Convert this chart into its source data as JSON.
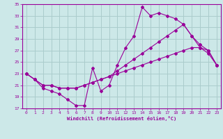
{
  "title": "",
  "xlabel": "Windchill (Refroidissement éolien,°C)",
  "ylabel": "",
  "background_color": "#cce8e8",
  "line_color": "#990099",
  "grid_color": "#aacccc",
  "xlim": [
    -0.5,
    23.5
  ],
  "ylim": [
    17,
    35
  ],
  "xticks": [
    0,
    1,
    2,
    3,
    4,
    5,
    6,
    7,
    8,
    9,
    10,
    11,
    12,
    13,
    14,
    15,
    16,
    17,
    18,
    19,
    20,
    21,
    22,
    23
  ],
  "yticks": [
    17,
    19,
    21,
    23,
    25,
    27,
    29,
    31,
    33,
    35
  ],
  "series": [
    {
      "x": [
        0,
        1,
        2,
        3,
        4,
        5,
        6,
        7,
        8,
        9,
        10,
        11,
        12,
        13,
        14,
        15,
        16,
        17,
        18,
        19,
        20,
        21,
        22,
        23
      ],
      "y": [
        23,
        22,
        20.5,
        20,
        19.5,
        18.5,
        17.5,
        17.5,
        24,
        20,
        21,
        24.5,
        27.5,
        29.5,
        34.5,
        33,
        33.5,
        33,
        32.5,
        31.5,
        29.5,
        27.5,
        26.5,
        24.5
      ]
    },
    {
      "x": [
        0,
        1,
        2,
        3,
        4,
        5,
        6,
        7,
        8,
        9,
        10,
        11,
        12,
        13,
        14,
        15,
        16,
        17,
        18,
        19,
        20,
        21,
        22,
        23
      ],
      "y": [
        23,
        22,
        21,
        21,
        20.5,
        20.5,
        20.5,
        21,
        21.5,
        22,
        22.5,
        23.5,
        24.5,
        25.5,
        26.5,
        27.5,
        28.5,
        29.5,
        30.5,
        31.5,
        29.5,
        28,
        27,
        24.5
      ]
    },
    {
      "x": [
        0,
        1,
        2,
        3,
        4,
        5,
        6,
        7,
        8,
        9,
        10,
        11,
        12,
        13,
        14,
        15,
        16,
        17,
        18,
        19,
        20,
        21,
        22,
        23
      ],
      "y": [
        23,
        22,
        21,
        21,
        20.5,
        20.5,
        20.5,
        21,
        21.5,
        22,
        22.5,
        23,
        23.5,
        24,
        24.5,
        25,
        25.5,
        26,
        26.5,
        27,
        27.5,
        27.5,
        27,
        24.5
      ]
    }
  ]
}
